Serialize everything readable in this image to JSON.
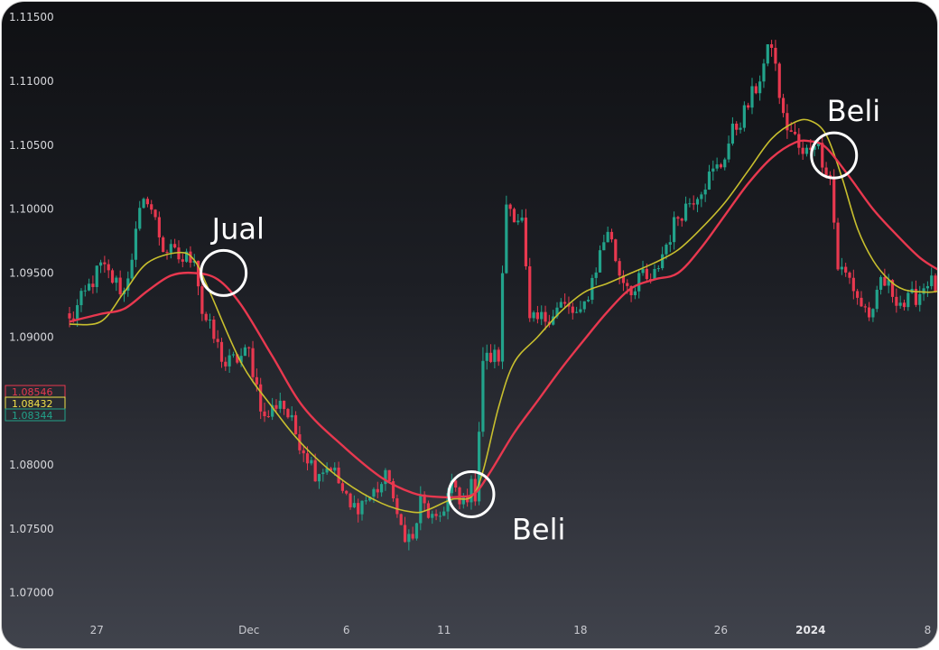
{
  "chart_data": {
    "type": "candlestick",
    "y_ticks": [
      "1.11500",
      "1.11000",
      "1.10500",
      "1.10000",
      "1.09500",
      "1.09000",
      "1.08000",
      "1.07500",
      "1.07000"
    ],
    "y_tick_values": [
      1.115,
      1.11,
      1.105,
      1.1,
      1.095,
      1.09,
      1.08,
      1.075,
      1.07
    ],
    "ylim": [
      1.0675,
      1.1155
    ],
    "x_ticks": [
      {
        "label": "27",
        "index": 7
      },
      {
        "label": "Dec",
        "index": 46
      },
      {
        "label": "6",
        "index": 71
      },
      {
        "label": "11",
        "index": 96
      },
      {
        "label": "18",
        "index": 131
      },
      {
        "label": "26",
        "index": 167
      },
      {
        "label": "2024",
        "index": 190,
        "bold": true
      },
      {
        "label": "8",
        "index": 220
      }
    ],
    "price_labels": [
      {
        "text": "1.08546",
        "value": 1.08546,
        "color": "#e8384f"
      },
      {
        "text": "1.08432",
        "value": 1.08432,
        "color": "#f2e24a"
      },
      {
        "text": "1.08344",
        "value": 1.08344,
        "color": "#22a38b"
      }
    ],
    "anchors": [
      [
        0,
        1.0912
      ],
      [
        8,
        1.0955
      ],
      [
        14,
        1.0935
      ],
      [
        18,
        1.0995
      ],
      [
        20,
        1.101
      ],
      [
        24,
        1.097
      ],
      [
        29,
        1.096
      ],
      [
        32,
        1.0965
      ],
      [
        34,
        1.092
      ],
      [
        40,
        1.0878
      ],
      [
        46,
        1.0888
      ],
      [
        50,
        1.0835
      ],
      [
        54,
        1.0852
      ],
      [
        58,
        1.0825
      ],
      [
        63,
        1.0795
      ],
      [
        67,
        1.08
      ],
      [
        72,
        1.0765
      ],
      [
        77,
        1.0775
      ],
      [
        82,
        1.0792
      ],
      [
        84,
        1.0755
      ],
      [
        88,
        1.074
      ],
      [
        90,
        1.0772
      ],
      [
        94,
        1.0752
      ],
      [
        98,
        1.0785
      ],
      [
        100,
        1.0768
      ],
      [
        103,
        1.0782
      ],
      [
        104,
        1.0778
      ],
      [
        106,
        1.0882
      ],
      [
        110,
        1.0885
      ],
      [
        112,
        1.1005
      ],
      [
        116,
        1.099
      ],
      [
        118,
        1.091
      ],
      [
        122,
        1.0915
      ],
      [
        126,
        1.0925
      ],
      [
        131,
        1.0915
      ],
      [
        135,
        1.0955
      ],
      [
        138,
        1.0985
      ],
      [
        141,
        1.095
      ],
      [
        145,
        1.0935
      ],
      [
        147,
        1.095
      ],
      [
        149,
        1.094
      ],
      [
        152,
        1.0965
      ],
      [
        156,
        1.0995
      ],
      [
        160,
        1.101
      ],
      [
        164,
        1.1025
      ],
      [
        167,
        1.1035
      ],
      [
        170,
        1.106
      ],
      [
        173,
        1.1075
      ],
      [
        176,
        1.1095
      ],
      [
        180,
        1.113
      ],
      [
        183,
        1.107
      ],
      [
        186,
        1.1055
      ],
      [
        188,
        1.104
      ],
      [
        191,
        1.1055
      ],
      [
        195,
        1.1025
      ],
      [
        197,
        1.0955
      ],
      [
        200,
        1.0945
      ],
      [
        203,
        1.0925
      ],
      [
        206,
        1.0915
      ],
      [
        208,
        1.0945
      ],
      [
        211,
        1.0935
      ],
      [
        214,
        1.0925
      ],
      [
        218,
        1.0935
      ],
      [
        220,
        1.0945
      ],
      [
        223,
        1.0935
      ]
    ],
    "sma_fast": {
      "color": "#c8bf2e",
      "points": [
        [
          0,
          1.091
        ],
        [
          8,
          1.0912
        ],
        [
          14,
          1.0935
        ],
        [
          20,
          1.0958
        ],
        [
          28,
          1.0966
        ],
        [
          32,
          1.096
        ],
        [
          36,
          1.0935
        ],
        [
          44,
          1.088
        ],
        [
          52,
          1.0845
        ],
        [
          60,
          1.0815
        ],
        [
          70,
          1.0788
        ],
        [
          80,
          1.077
        ],
        [
          88,
          1.0763
        ],
        [
          92,
          1.0765
        ],
        [
          98,
          1.0773
        ],
        [
          103,
          1.0775
        ],
        [
          106,
          1.0795
        ],
        [
          110,
          1.0845
        ],
        [
          114,
          1.088
        ],
        [
          120,
          1.09
        ],
        [
          126,
          1.092
        ],
        [
          132,
          1.0935
        ],
        [
          138,
          1.0942
        ],
        [
          144,
          1.095
        ],
        [
          150,
          1.0958
        ],
        [
          156,
          1.0968
        ],
        [
          162,
          1.0985
        ],
        [
          168,
          1.1005
        ],
        [
          174,
          1.103
        ],
        [
          180,
          1.1055
        ],
        [
          186,
          1.1068
        ],
        [
          190,
          1.1069
        ],
        [
          194,
          1.1058
        ],
        [
          198,
          1.1025
        ],
        [
          202,
          1.0985
        ],
        [
          206,
          1.096
        ],
        [
          210,
          1.0945
        ],
        [
          214,
          1.0937
        ],
        [
          220,
          1.0935
        ],
        [
          223,
          1.0936
        ]
      ]
    },
    "sma_slow": {
      "color": "#e8384f",
      "points": [
        [
          0,
          1.0912
        ],
        [
          8,
          1.0918
        ],
        [
          14,
          1.0922
        ],
        [
          20,
          1.0936
        ],
        [
          26,
          1.0948
        ],
        [
          32,
          1.095
        ],
        [
          38,
          1.0945
        ],
        [
          44,
          1.0925
        ],
        [
          52,
          1.0885
        ],
        [
          60,
          1.0845
        ],
        [
          70,
          1.0815
        ],
        [
          80,
          1.079
        ],
        [
          88,
          1.0778
        ],
        [
          94,
          1.0775
        ],
        [
          100,
          1.0775
        ],
        [
          104,
          1.0778
        ],
        [
          108,
          1.0795
        ],
        [
          114,
          1.0825
        ],
        [
          120,
          1.085
        ],
        [
          126,
          1.0875
        ],
        [
          132,
          1.0898
        ],
        [
          138,
          1.092
        ],
        [
          144,
          1.0938
        ],
        [
          150,
          1.0945
        ],
        [
          156,
          1.095
        ],
        [
          162,
          1.097
        ],
        [
          168,
          1.0995
        ],
        [
          174,
          1.102
        ],
        [
          180,
          1.104
        ],
        [
          186,
          1.1052
        ],
        [
          190,
          1.1053
        ],
        [
          194,
          1.1048
        ],
        [
          200,
          1.1025
        ],
        [
          206,
          1.1
        ],
        [
          212,
          1.098
        ],
        [
          218,
          1.0962
        ],
        [
          223,
          1.0952
        ]
      ]
    },
    "annotations": [
      {
        "text": "Jual",
        "index": 39.5,
        "value": 1.095
      },
      {
        "text": "Beli",
        "index": 103,
        "value": 1.0777
      },
      {
        "text": "Beli",
        "index": 196,
        "value": 1.1042
      }
    ],
    "colors": {
      "up": "#22a38b",
      "down": "#e8384f"
    }
  }
}
